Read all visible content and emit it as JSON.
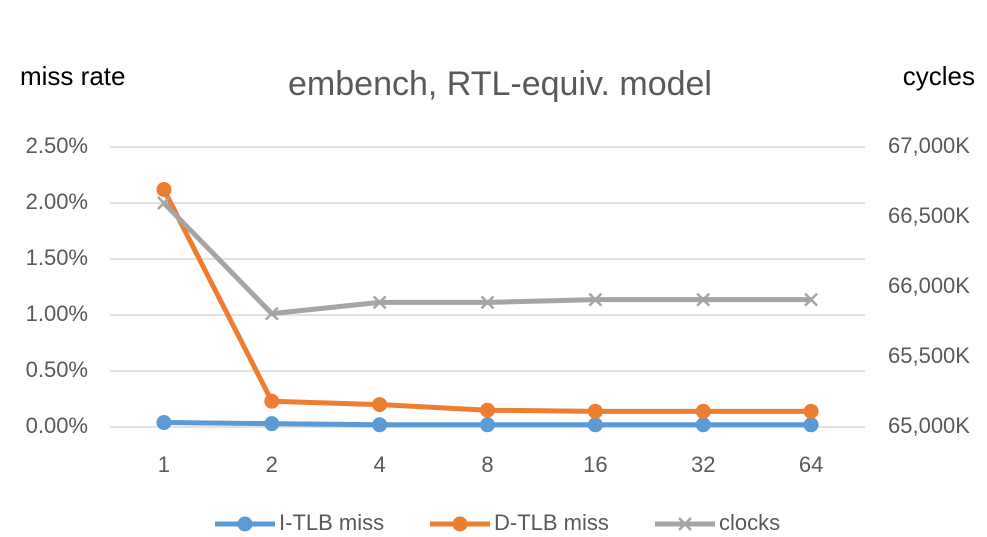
{
  "chart_data": {
    "type": "line",
    "title": "embench, RTL-equiv. model",
    "ylabel": "miss rate",
    "y2label": "cycles",
    "categories": [
      "1",
      "2",
      "4",
      "8",
      "16",
      "32",
      "64"
    ],
    "series": [
      {
        "name": "I-TLB miss",
        "color": "#5b9bd5",
        "marker": "circle",
        "values": [
          0.04,
          0.03,
          0.02,
          0.02,
          0.02,
          0.02,
          0.02
        ]
      },
      {
        "name": "D-TLB miss",
        "color": "#ed7d31",
        "marker": "circle",
        "values": [
          2.12,
          0.23,
          0.2,
          0.15,
          0.14,
          0.14,
          0.14
        ]
      },
      {
        "name": "clocks",
        "color": "#a5a5a5",
        "marker": "x",
        "axis": "y2",
        "values": [
          66600,
          65810,
          65890,
          65890,
          65910,
          65910,
          65910
        ]
      }
    ],
    "ylim": [
      0,
      2.5
    ],
    "yticks": [
      {
        "value": 0,
        "label": "0.00%"
      },
      {
        "value": 0.5,
        "label": "0.50%"
      },
      {
        "value": 1,
        "label": "1.00%"
      },
      {
        "value": 1.5,
        "label": "1.50%"
      },
      {
        "value": 2,
        "label": "2.00%"
      },
      {
        "value": 2.5,
        "label": "2.50%"
      }
    ],
    "y2lim": [
      65000,
      67000
    ],
    "y2ticks": [
      {
        "value": 65000,
        "label": "65,000K"
      },
      {
        "value": 65500,
        "label": "65,500K"
      },
      {
        "value": 66000,
        "label": "66,000K"
      },
      {
        "value": 66500,
        "label": "66,500K"
      },
      {
        "value": 67000,
        "label": "67,000K"
      }
    ],
    "grid": true,
    "legend": "bottom"
  }
}
